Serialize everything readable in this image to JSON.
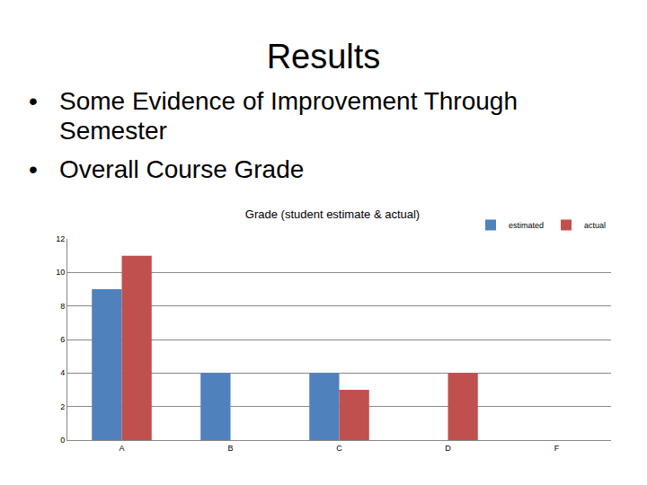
{
  "slide": {
    "title": "Results",
    "bullets": [
      "Some Evidence of Improvement Through Semester",
      "Overall Course Grade"
    ]
  },
  "chart_data": {
    "type": "bar",
    "title": "Grade (student estimate & actual)",
    "categories": [
      "A",
      "B",
      "C",
      "D",
      "F"
    ],
    "series": [
      {
        "name": "estimated",
        "color": "#4f81bd",
        "values": [
          9,
          4,
          4,
          0,
          0
        ]
      },
      {
        "name": "actual",
        "color": "#c0504d",
        "values": [
          11,
          0,
          3,
          4,
          0
        ]
      }
    ],
    "ylim": [
      0,
      12
    ],
    "yticks": [
      0,
      2,
      4,
      6,
      8,
      10,
      12
    ],
    "grid": true,
    "legend": "top right"
  }
}
